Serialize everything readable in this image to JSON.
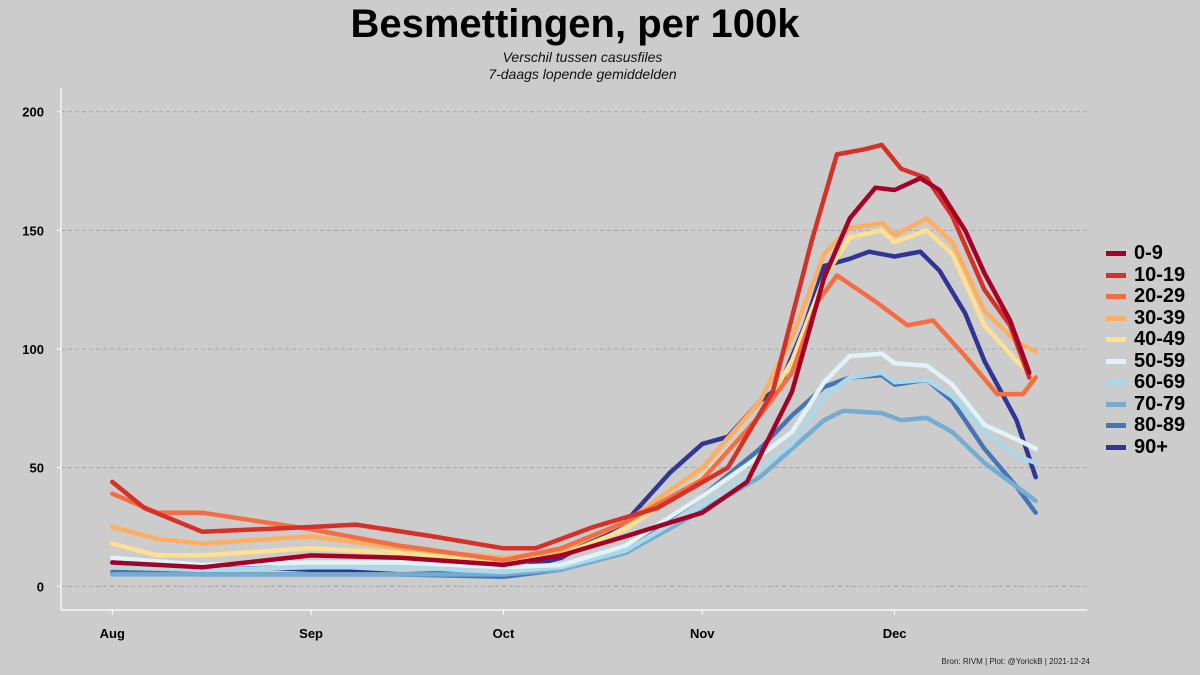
{
  "title": "Besmettingen, per 100k",
  "subtitle_lines": [
    "Verschil tussen casusfiles",
    "7-daags lopende gemiddelden"
  ],
  "caption": "Bron: RIVM | Plot: @YorickB  |  2021-12-24",
  "chart_data": {
    "type": "line",
    "title": "Besmettingen, per 100k",
    "subtitle": "Verschil tussen casusfiles 7-daags lopende gemiddelden",
    "xlabel": "",
    "ylabel": "",
    "x_type": "date",
    "x_ticks": [
      {
        "date": "2021-08-01",
        "label": "Aug"
      },
      {
        "date": "2021-09-01",
        "label": "Sep"
      },
      {
        "date": "2021-10-01",
        "label": "Oct"
      },
      {
        "date": "2021-11-01",
        "label": "Nov"
      },
      {
        "date": "2021-12-01",
        "label": "Dec"
      }
    ],
    "xlim": [
      "2021-07-24",
      "2021-12-31"
    ],
    "y_ticks": [
      0,
      50,
      100,
      150,
      200
    ],
    "ylim": [
      -10,
      210
    ],
    "grid": "horizontal dashed",
    "legend_position": "right",
    "series": [
      {
        "name": "0-9",
        "color": "#a50026",
        "points": [
          [
            "2021-08-01",
            10
          ],
          [
            "2021-08-15",
            8
          ],
          [
            "2021-09-01",
            13
          ],
          [
            "2021-09-15",
            12
          ],
          [
            "2021-10-01",
            9
          ],
          [
            "2021-10-10",
            13
          ],
          [
            "2021-10-20",
            21
          ],
          [
            "2021-11-01",
            31
          ],
          [
            "2021-11-08",
            44
          ],
          [
            "2021-11-15",
            82
          ],
          [
            "2021-11-20",
            130
          ],
          [
            "2021-11-24",
            155
          ],
          [
            "2021-11-28",
            168
          ],
          [
            "2021-12-01",
            167
          ],
          [
            "2021-12-05",
            172
          ],
          [
            "2021-12-08",
            167
          ],
          [
            "2021-12-12",
            150
          ],
          [
            "2021-12-15",
            132
          ],
          [
            "2021-12-19",
            112
          ],
          [
            "2021-12-22",
            90
          ]
        ]
      },
      {
        "name": "10-19",
        "color": "#d73027",
        "points": [
          [
            "2021-08-01",
            44
          ],
          [
            "2021-08-06",
            33
          ],
          [
            "2021-08-15",
            23
          ],
          [
            "2021-09-01",
            25
          ],
          [
            "2021-09-08",
            26
          ],
          [
            "2021-09-20",
            21
          ],
          [
            "2021-10-01",
            16
          ],
          [
            "2021-10-06",
            16
          ],
          [
            "2021-10-15",
            25
          ],
          [
            "2021-10-25",
            33
          ],
          [
            "2021-11-05",
            50
          ],
          [
            "2021-11-12",
            82
          ],
          [
            "2021-11-18",
            145
          ],
          [
            "2021-11-22",
            182
          ],
          [
            "2021-11-26",
            184
          ],
          [
            "2021-11-29",
            186
          ],
          [
            "2021-12-02",
            176
          ],
          [
            "2021-12-06",
            172
          ],
          [
            "2021-12-10",
            156
          ],
          [
            "2021-12-15",
            125
          ],
          [
            "2021-12-19",
            110
          ],
          [
            "2021-12-22",
            88
          ]
        ]
      },
      {
        "name": "20-29",
        "color": "#f46d43",
        "points": [
          [
            "2021-08-01",
            39
          ],
          [
            "2021-08-08",
            31
          ],
          [
            "2021-08-15",
            31
          ],
          [
            "2021-09-01",
            24
          ],
          [
            "2021-09-15",
            17
          ],
          [
            "2021-10-01",
            11
          ],
          [
            "2021-10-10",
            16
          ],
          [
            "2021-10-20",
            27
          ],
          [
            "2021-11-01",
            45
          ],
          [
            "2021-11-10",
            72
          ],
          [
            "2021-11-15",
            90
          ],
          [
            "2021-11-19",
            120
          ],
          [
            "2021-11-22",
            131
          ],
          [
            "2021-11-28",
            120
          ],
          [
            "2021-12-03",
            110
          ],
          [
            "2021-12-07",
            112
          ],
          [
            "2021-12-12",
            97
          ],
          [
            "2021-12-17",
            81
          ],
          [
            "2021-12-21",
            81
          ],
          [
            "2021-12-23",
            88
          ]
        ]
      },
      {
        "name": "30-39",
        "color": "#fdae61",
        "points": [
          [
            "2021-08-01",
            25
          ],
          [
            "2021-08-08",
            20
          ],
          [
            "2021-08-15",
            18
          ],
          [
            "2021-09-01",
            21
          ],
          [
            "2021-09-15",
            16
          ],
          [
            "2021-10-01",
            12
          ],
          [
            "2021-10-10",
            15
          ],
          [
            "2021-10-20",
            27
          ],
          [
            "2021-11-01",
            50
          ],
          [
            "2021-11-10",
            78
          ],
          [
            "2021-11-15",
            105
          ],
          [
            "2021-11-20",
            140
          ],
          [
            "2021-11-24",
            151
          ],
          [
            "2021-11-29",
            153
          ],
          [
            "2021-12-01",
            148
          ],
          [
            "2021-12-06",
            155
          ],
          [
            "2021-12-10",
            145
          ],
          [
            "2021-12-15",
            116
          ],
          [
            "2021-12-20",
            103
          ],
          [
            "2021-12-23",
            99
          ]
        ]
      },
      {
        "name": "40-49",
        "color": "#fee090",
        "points": [
          [
            "2021-08-01",
            18
          ],
          [
            "2021-08-08",
            13
          ],
          [
            "2021-08-15",
            13
          ],
          [
            "2021-09-01",
            16
          ],
          [
            "2021-09-15",
            14
          ],
          [
            "2021-10-01",
            11
          ],
          [
            "2021-10-10",
            13
          ],
          [
            "2021-10-20",
            24
          ],
          [
            "2021-11-01",
            46
          ],
          [
            "2021-11-10",
            72
          ],
          [
            "2021-11-15",
            95
          ],
          [
            "2021-11-20",
            130
          ],
          [
            "2021-11-24",
            147
          ],
          [
            "2021-11-29",
            150
          ],
          [
            "2021-12-01",
            145
          ],
          [
            "2021-12-06",
            150
          ],
          [
            "2021-12-10",
            140
          ],
          [
            "2021-12-15",
            110
          ],
          [
            "2021-12-20",
            95
          ],
          [
            "2021-12-23",
            87
          ]
        ]
      },
      {
        "name": "50-59",
        "color": "#e0f3f8",
        "points": [
          [
            "2021-08-01",
            12
          ],
          [
            "2021-08-15",
            9
          ],
          [
            "2021-09-01",
            10
          ],
          [
            "2021-09-15",
            10
          ],
          [
            "2021-10-01",
            8
          ],
          [
            "2021-10-10",
            9
          ],
          [
            "2021-10-20",
            17
          ],
          [
            "2021-11-01",
            38
          ],
          [
            "2021-11-10",
            55
          ],
          [
            "2021-11-15",
            65
          ],
          [
            "2021-11-20",
            86
          ],
          [
            "2021-11-24",
            97
          ],
          [
            "2021-11-29",
            98
          ],
          [
            "2021-12-01",
            94
          ],
          [
            "2021-12-06",
            93
          ],
          [
            "2021-12-10",
            85
          ],
          [
            "2021-12-15",
            68
          ],
          [
            "2021-12-20",
            62
          ],
          [
            "2021-12-23",
            58
          ]
        ]
      },
      {
        "name": "60-69",
        "color": "#abd9e9",
        "points": [
          [
            "2021-08-01",
            9
          ],
          [
            "2021-08-15",
            7
          ],
          [
            "2021-09-01",
            8
          ],
          [
            "2021-09-15",
            8
          ],
          [
            "2021-10-01",
            6
          ],
          [
            "2021-10-10",
            8
          ],
          [
            "2021-10-20",
            15
          ],
          [
            "2021-11-01",
            34
          ],
          [
            "2021-11-10",
            50
          ],
          [
            "2021-11-15",
            60
          ],
          [
            "2021-11-20",
            80
          ],
          [
            "2021-11-24",
            88
          ],
          [
            "2021-11-29",
            90
          ],
          [
            "2021-12-01",
            86
          ],
          [
            "2021-12-06",
            87
          ],
          [
            "2021-12-10",
            80
          ],
          [
            "2021-12-15",
            65
          ],
          [
            "2021-12-20",
            55
          ],
          [
            "2021-12-23",
            52
          ]
        ]
      },
      {
        "name": "70-79",
        "color": "#74add1",
        "points": [
          [
            "2021-08-01",
            5
          ],
          [
            "2021-08-15",
            5
          ],
          [
            "2021-09-01",
            5
          ],
          [
            "2021-09-15",
            5
          ],
          [
            "2021-10-01",
            5
          ],
          [
            "2021-10-10",
            7
          ],
          [
            "2021-10-20",
            14
          ],
          [
            "2021-11-01",
            32
          ],
          [
            "2021-11-10",
            46
          ],
          [
            "2021-11-15",
            58
          ],
          [
            "2021-11-20",
            70
          ],
          [
            "2021-11-23",
            74
          ],
          [
            "2021-11-29",
            73
          ],
          [
            "2021-12-02",
            70
          ],
          [
            "2021-12-06",
            71
          ],
          [
            "2021-12-10",
            65
          ],
          [
            "2021-12-15",
            52
          ],
          [
            "2021-12-20",
            42
          ],
          [
            "2021-12-23",
            36
          ]
        ]
      },
      {
        "name": "80-89",
        "color": "#4575b4",
        "points": [
          [
            "2021-08-01",
            6
          ],
          [
            "2021-08-15",
            5
          ],
          [
            "2021-09-01",
            5
          ],
          [
            "2021-09-15",
            5
          ],
          [
            "2021-10-01",
            4
          ],
          [
            "2021-10-10",
            7
          ],
          [
            "2021-10-20",
            16
          ],
          [
            "2021-11-01",
            38
          ],
          [
            "2021-11-10",
            58
          ],
          [
            "2021-11-15",
            72
          ],
          [
            "2021-11-20",
            84
          ],
          [
            "2021-11-24",
            88
          ],
          [
            "2021-11-29",
            89
          ],
          [
            "2021-12-01",
            85
          ],
          [
            "2021-12-06",
            87
          ],
          [
            "2021-12-10",
            78
          ],
          [
            "2021-12-15",
            58
          ],
          [
            "2021-12-20",
            42
          ],
          [
            "2021-12-23",
            31
          ]
        ]
      },
      {
        "name": "90+",
        "color": "#313695",
        "points": [
          [
            "2021-08-01",
            10
          ],
          [
            "2021-08-08",
            9
          ],
          [
            "2021-08-15",
            9
          ],
          [
            "2021-09-01",
            7
          ],
          [
            "2021-09-15",
            5
          ],
          [
            "2021-10-01",
            6
          ],
          [
            "2021-10-10",
            12
          ],
          [
            "2021-10-20",
            27
          ],
          [
            "2021-10-27",
            48
          ],
          [
            "2021-11-01",
            60
          ],
          [
            "2021-11-05",
            63
          ],
          [
            "2021-11-10",
            78
          ],
          [
            "2021-11-13",
            84
          ],
          [
            "2021-11-17",
            110
          ],
          [
            "2021-11-20",
            135
          ],
          [
            "2021-11-24",
            138
          ],
          [
            "2021-11-27",
            141
          ],
          [
            "2021-12-01",
            139
          ],
          [
            "2021-12-05",
            141
          ],
          [
            "2021-12-08",
            133
          ],
          [
            "2021-12-12",
            115
          ],
          [
            "2021-12-15",
            95
          ],
          [
            "2021-12-20",
            70
          ],
          [
            "2021-12-23",
            46
          ]
        ]
      }
    ]
  }
}
